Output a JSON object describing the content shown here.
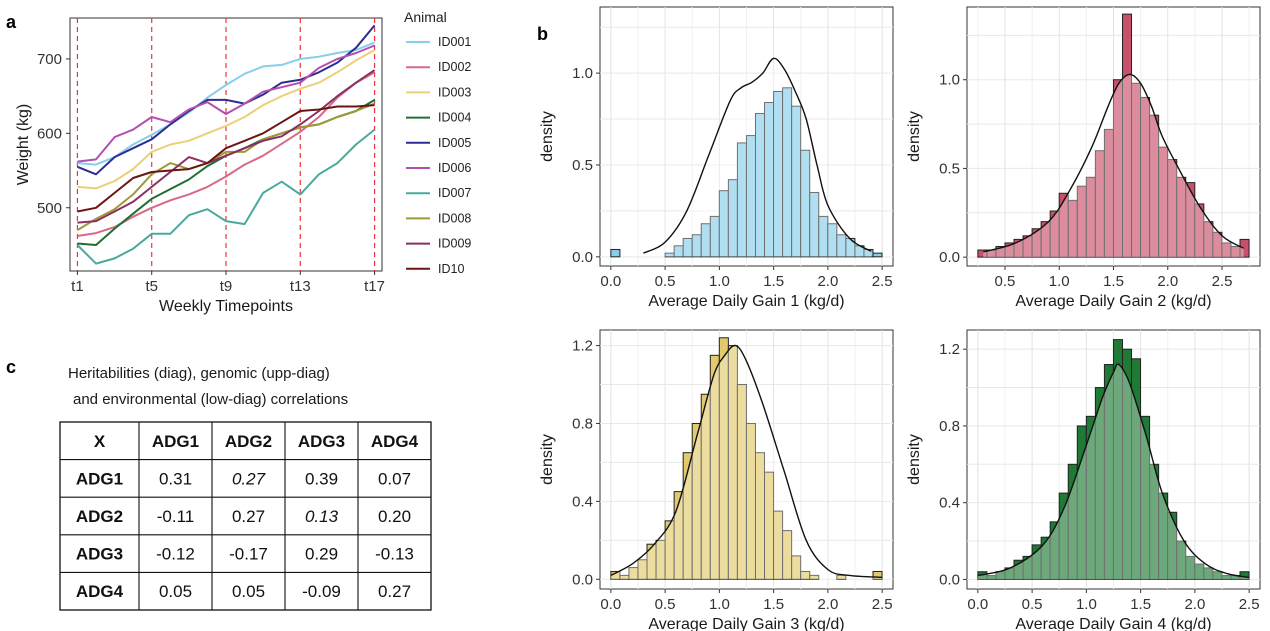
{
  "labels": {
    "a": "a",
    "b": "b",
    "c": "c"
  },
  "chart_data": [
    {
      "id": "weights",
      "type": "line",
      "xlabel": "Weekly Timepoints",
      "ylabel": "Weight (kg)",
      "x_ticks": [
        "t1",
        "t5",
        "t9",
        "t13",
        "t17"
      ],
      "x_tick_positions": [
        1,
        5,
        9,
        13,
        17
      ],
      "xlim": [
        0.6,
        17.4
      ],
      "ylim": [
        415,
        755
      ],
      "y_ticks": [
        500,
        600,
        700
      ],
      "vlines": [
        1,
        5,
        9,
        13,
        17
      ],
      "vline_color": "#e8353a",
      "legend_title": "Animal",
      "legend_position": "right",
      "x": [
        1,
        2,
        3,
        4,
        5,
        6,
        7,
        8,
        9,
        10,
        11,
        12,
        13,
        14,
        15,
        16,
        17
      ],
      "series": [
        {
          "name": "ID001",
          "color": "#87ceeb",
          "values": [
            560,
            558,
            568,
            585,
            598,
            612,
            628,
            648,
            665,
            680,
            690,
            692,
            700,
            703,
            708,
            712,
            722
          ]
        },
        {
          "name": "ID002",
          "color": "#d86a85",
          "values": [
            462,
            466,
            474,
            488,
            500,
            510,
            518,
            528,
            542,
            558,
            570,
            586,
            602,
            622,
            648,
            668,
            682
          ]
        },
        {
          "name": "ID003",
          "color": "#ead077",
          "values": [
            528,
            526,
            536,
            552,
            575,
            585,
            590,
            600,
            610,
            622,
            638,
            650,
            660,
            668,
            682,
            698,
            712
          ]
        },
        {
          "name": "ID004",
          "color": "#1f6f35",
          "values": [
            452,
            450,
            472,
            492,
            512,
            525,
            538,
            556,
            570,
            580,
            592,
            600,
            608,
            612,
            622,
            630,
            645
          ]
        },
        {
          "name": "ID005",
          "color": "#2d2d90",
          "values": [
            555,
            545,
            568,
            580,
            592,
            612,
            630,
            645,
            645,
            640,
            652,
            668,
            672,
            682,
            695,
            715,
            745
          ]
        },
        {
          "name": "ID006",
          "color": "#b34fb0",
          "values": [
            562,
            565,
            595,
            605,
            622,
            615,
            632,
            642,
            626,
            640,
            656,
            662,
            668,
            688,
            700,
            708,
            718
          ]
        },
        {
          "name": "ID007",
          "color": "#4aa99d",
          "values": [
            450,
            425,
            432,
            445,
            465,
            465,
            490,
            498,
            482,
            478,
            520,
            535,
            518,
            545,
            560,
            585,
            605
          ]
        },
        {
          "name": "ID008",
          "color": "#9e9a35",
          "values": [
            470,
            485,
            498,
            518,
            545,
            560,
            552,
            560,
            575,
            575,
            592,
            600,
            608,
            612,
            622,
            630,
            640
          ]
        },
        {
          "name": "ID009",
          "color": "#8b2f63",
          "values": [
            480,
            482,
            495,
            508,
            528,
            548,
            568,
            560,
            570,
            580,
            590,
            596,
            612,
            630,
            650,
            668,
            685
          ]
        },
        {
          "name": "ID10",
          "color": "#6b1515",
          "values": [
            495,
            500,
            520,
            540,
            548,
            550,
            552,
            560,
            580,
            590,
            600,
            615,
            630,
            632,
            636,
            636,
            638
          ]
        }
      ]
    },
    {
      "id": "adg1",
      "type": "bar",
      "xlabel": "Average Daily Gain 1 (kg/d)",
      "ylabel": "density",
      "color": "#87ceeb",
      "xlim": [
        -0.1,
        2.6
      ],
      "ylim": [
        -0.05,
        1.36
      ],
      "x_ticks": [
        0.0,
        0.5,
        1.0,
        1.5,
        2.0,
        2.5
      ],
      "x_tick_labels": [
        "0.0",
        "0.5",
        "1.0",
        "1.5",
        "2.0",
        "2.5"
      ],
      "y_ticks": [
        0.0,
        0.5,
        1.0
      ],
      "y_tick_labels": [
        "0.0",
        "0.5",
        "1.0"
      ],
      "bin_start": 0.0,
      "bin_width": 0.0833,
      "values": [
        0.04,
        0,
        0,
        0,
        0,
        0,
        0.02,
        0.06,
        0.1,
        0.12,
        0.18,
        0.22,
        0.36,
        0.42,
        0.62,
        0.66,
        0.78,
        0.84,
        0.9,
        0.92,
        0.82,
        0.58,
        0.35,
        0.22,
        0.18,
        0.12,
        0.1,
        0.06,
        0.04,
        0.02
      ],
      "density_x": [
        0.3,
        0.5,
        0.7,
        0.9,
        1.1,
        1.2,
        1.3,
        1.4,
        1.5,
        1.6,
        1.7,
        1.8,
        1.9,
        2.0,
        2.2,
        2.4
      ],
      "density_y": [
        0.02,
        0.08,
        0.25,
        0.55,
        0.85,
        0.92,
        0.95,
        1.0,
        1.08,
        1.02,
        0.9,
        0.75,
        0.5,
        0.28,
        0.1,
        0.03
      ]
    },
    {
      "id": "adg2",
      "type": "bar",
      "xlabel": "Average Daily Gain 2 (kg/d)",
      "ylabel": "density",
      "color": "#c8506a",
      "xlim": [
        0.15,
        2.85
      ],
      "ylim": [
        -0.05,
        1.41
      ],
      "x_ticks": [
        0.5,
        1.0,
        1.5,
        2.0,
        2.5
      ],
      "x_tick_labels": [
        "0.5",
        "1.0",
        "1.5",
        "2.0",
        "2.5"
      ],
      "y_ticks": [
        0.0,
        0.5,
        1.0
      ],
      "y_tick_labels": [
        "0.0",
        "0.5",
        "1.0"
      ],
      "bin_start": 0.25,
      "bin_width": 0.0833,
      "values": [
        0.04,
        0.04,
        0.06,
        0.08,
        0.1,
        0.12,
        0.16,
        0.2,
        0.26,
        0.36,
        0.32,
        0.4,
        0.45,
        0.6,
        0.72,
        1.0,
        1.37,
        0.98,
        0.9,
        0.8,
        0.62,
        0.55,
        0.45,
        0.42,
        0.3,
        0.2,
        0.14,
        0.08,
        0.06,
        0.1
      ],
      "density_x": [
        0.3,
        0.6,
        0.9,
        1.1,
        1.3,
        1.45,
        1.55,
        1.65,
        1.75,
        1.85,
        1.95,
        2.1,
        2.3,
        2.5,
        2.7
      ],
      "density_y": [
        0.03,
        0.08,
        0.2,
        0.38,
        0.62,
        0.85,
        0.98,
        1.03,
        0.98,
        0.85,
        0.68,
        0.5,
        0.28,
        0.12,
        0.05
      ]
    },
    {
      "id": "adg3",
      "type": "bar",
      "xlabel": "Average Daily Gain 3 (kg/d)",
      "ylabel": "density",
      "color": "#e2c96b",
      "xlim": [
        -0.1,
        2.6
      ],
      "ylim": [
        -0.05,
        1.28
      ],
      "x_ticks": [
        0.0,
        0.5,
        1.0,
        1.5,
        2.0,
        2.5
      ],
      "x_tick_labels": [
        "0.0",
        "0.5",
        "1.0",
        "1.5",
        "2.0",
        "2.5"
      ],
      "y_ticks": [
        0.0,
        0.4,
        0.8,
        1.2
      ],
      "y_tick_labels": [
        "0.0",
        "0.4",
        "0.8",
        "1.2"
      ],
      "bin_start": 0.0,
      "bin_width": 0.0833,
      "values": [
        0.04,
        0.02,
        0.06,
        0.1,
        0.18,
        0.2,
        0.3,
        0.45,
        0.65,
        0.8,
        0.95,
        1.15,
        1.24,
        1.2,
        1.0,
        0.8,
        0.65,
        0.55,
        0.35,
        0.25,
        0.12,
        0.04,
        0.02,
        0,
        0,
        0.02,
        0,
        0,
        0,
        0.04
      ],
      "density_x": [
        0.0,
        0.2,
        0.4,
        0.6,
        0.8,
        0.95,
        1.05,
        1.15,
        1.25,
        1.4,
        1.6,
        1.8,
        2.0,
        2.2,
        2.5
      ],
      "density_y": [
        0.02,
        0.08,
        0.18,
        0.35,
        0.75,
        1.05,
        1.15,
        1.2,
        1.12,
        0.9,
        0.55,
        0.2,
        0.05,
        0.02,
        0.01
      ]
    },
    {
      "id": "adg4",
      "type": "bar",
      "xlabel": "Average Daily Gain 4 (kg/d)",
      "ylabel": "density",
      "color": "#1e7a34",
      "xlim": [
        -0.1,
        2.6
      ],
      "ylim": [
        -0.05,
        1.3
      ],
      "x_ticks": [
        0.0,
        0.5,
        1.0,
        1.5,
        2.0,
        2.5
      ],
      "x_tick_labels": [
        "0.0",
        "0.5",
        "1.0",
        "1.5",
        "2.0",
        "2.5"
      ],
      "y_ticks": [
        0.0,
        0.4,
        0.8,
        1.2
      ],
      "y_tick_labels": [
        "0.0",
        "0.4",
        "0.8",
        "1.2"
      ],
      "bin_start": 0.0,
      "bin_width": 0.0833,
      "values": [
        0.04,
        0.02,
        0.04,
        0.06,
        0.1,
        0.12,
        0.18,
        0.22,
        0.3,
        0.45,
        0.6,
        0.8,
        0.85,
        1.0,
        1.12,
        1.25,
        1.2,
        1.15,
        0.85,
        0.6,
        0.45,
        0.35,
        0.2,
        0.12,
        0.08,
        0.06,
        0.04,
        0.02,
        0.02,
        0.04
      ],
      "density_x": [
        0.0,
        0.3,
        0.6,
        0.8,
        1.0,
        1.15,
        1.25,
        1.3,
        1.4,
        1.55,
        1.7,
        1.9,
        2.1,
        2.3,
        2.5
      ],
      "density_y": [
        0.02,
        0.06,
        0.18,
        0.38,
        0.7,
        0.95,
        1.08,
        1.12,
        1.02,
        0.75,
        0.45,
        0.2,
        0.08,
        0.03,
        0.01
      ]
    }
  ],
  "table": {
    "title_line1": "Heritabilities (diag), genomic (upp-diag)",
    "title_line2": "and environmental (low-diag) correlations",
    "header": [
      "X",
      "ADG1",
      "ADG2",
      "ADG3",
      "ADG4"
    ],
    "rows": [
      {
        "label": "ADG1",
        "cells": [
          "0.31",
          "0.27",
          "0.39",
          "0.07"
        ],
        "italic": [
          false,
          true,
          false,
          false
        ]
      },
      {
        "label": "ADG2",
        "cells": [
          "-0.11",
          "0.27",
          "0.13",
          "0.20"
        ],
        "italic": [
          false,
          false,
          true,
          false
        ]
      },
      {
        "label": "ADG3",
        "cells": [
          "-0.12",
          "-0.17",
          "0.29",
          "-0.13"
        ],
        "italic": [
          false,
          false,
          false,
          false
        ]
      },
      {
        "label": "ADG4",
        "cells": [
          "0.05",
          "0.05",
          "-0.09",
          "0.27"
        ],
        "italic": [
          false,
          false,
          false,
          false
        ]
      }
    ]
  }
}
